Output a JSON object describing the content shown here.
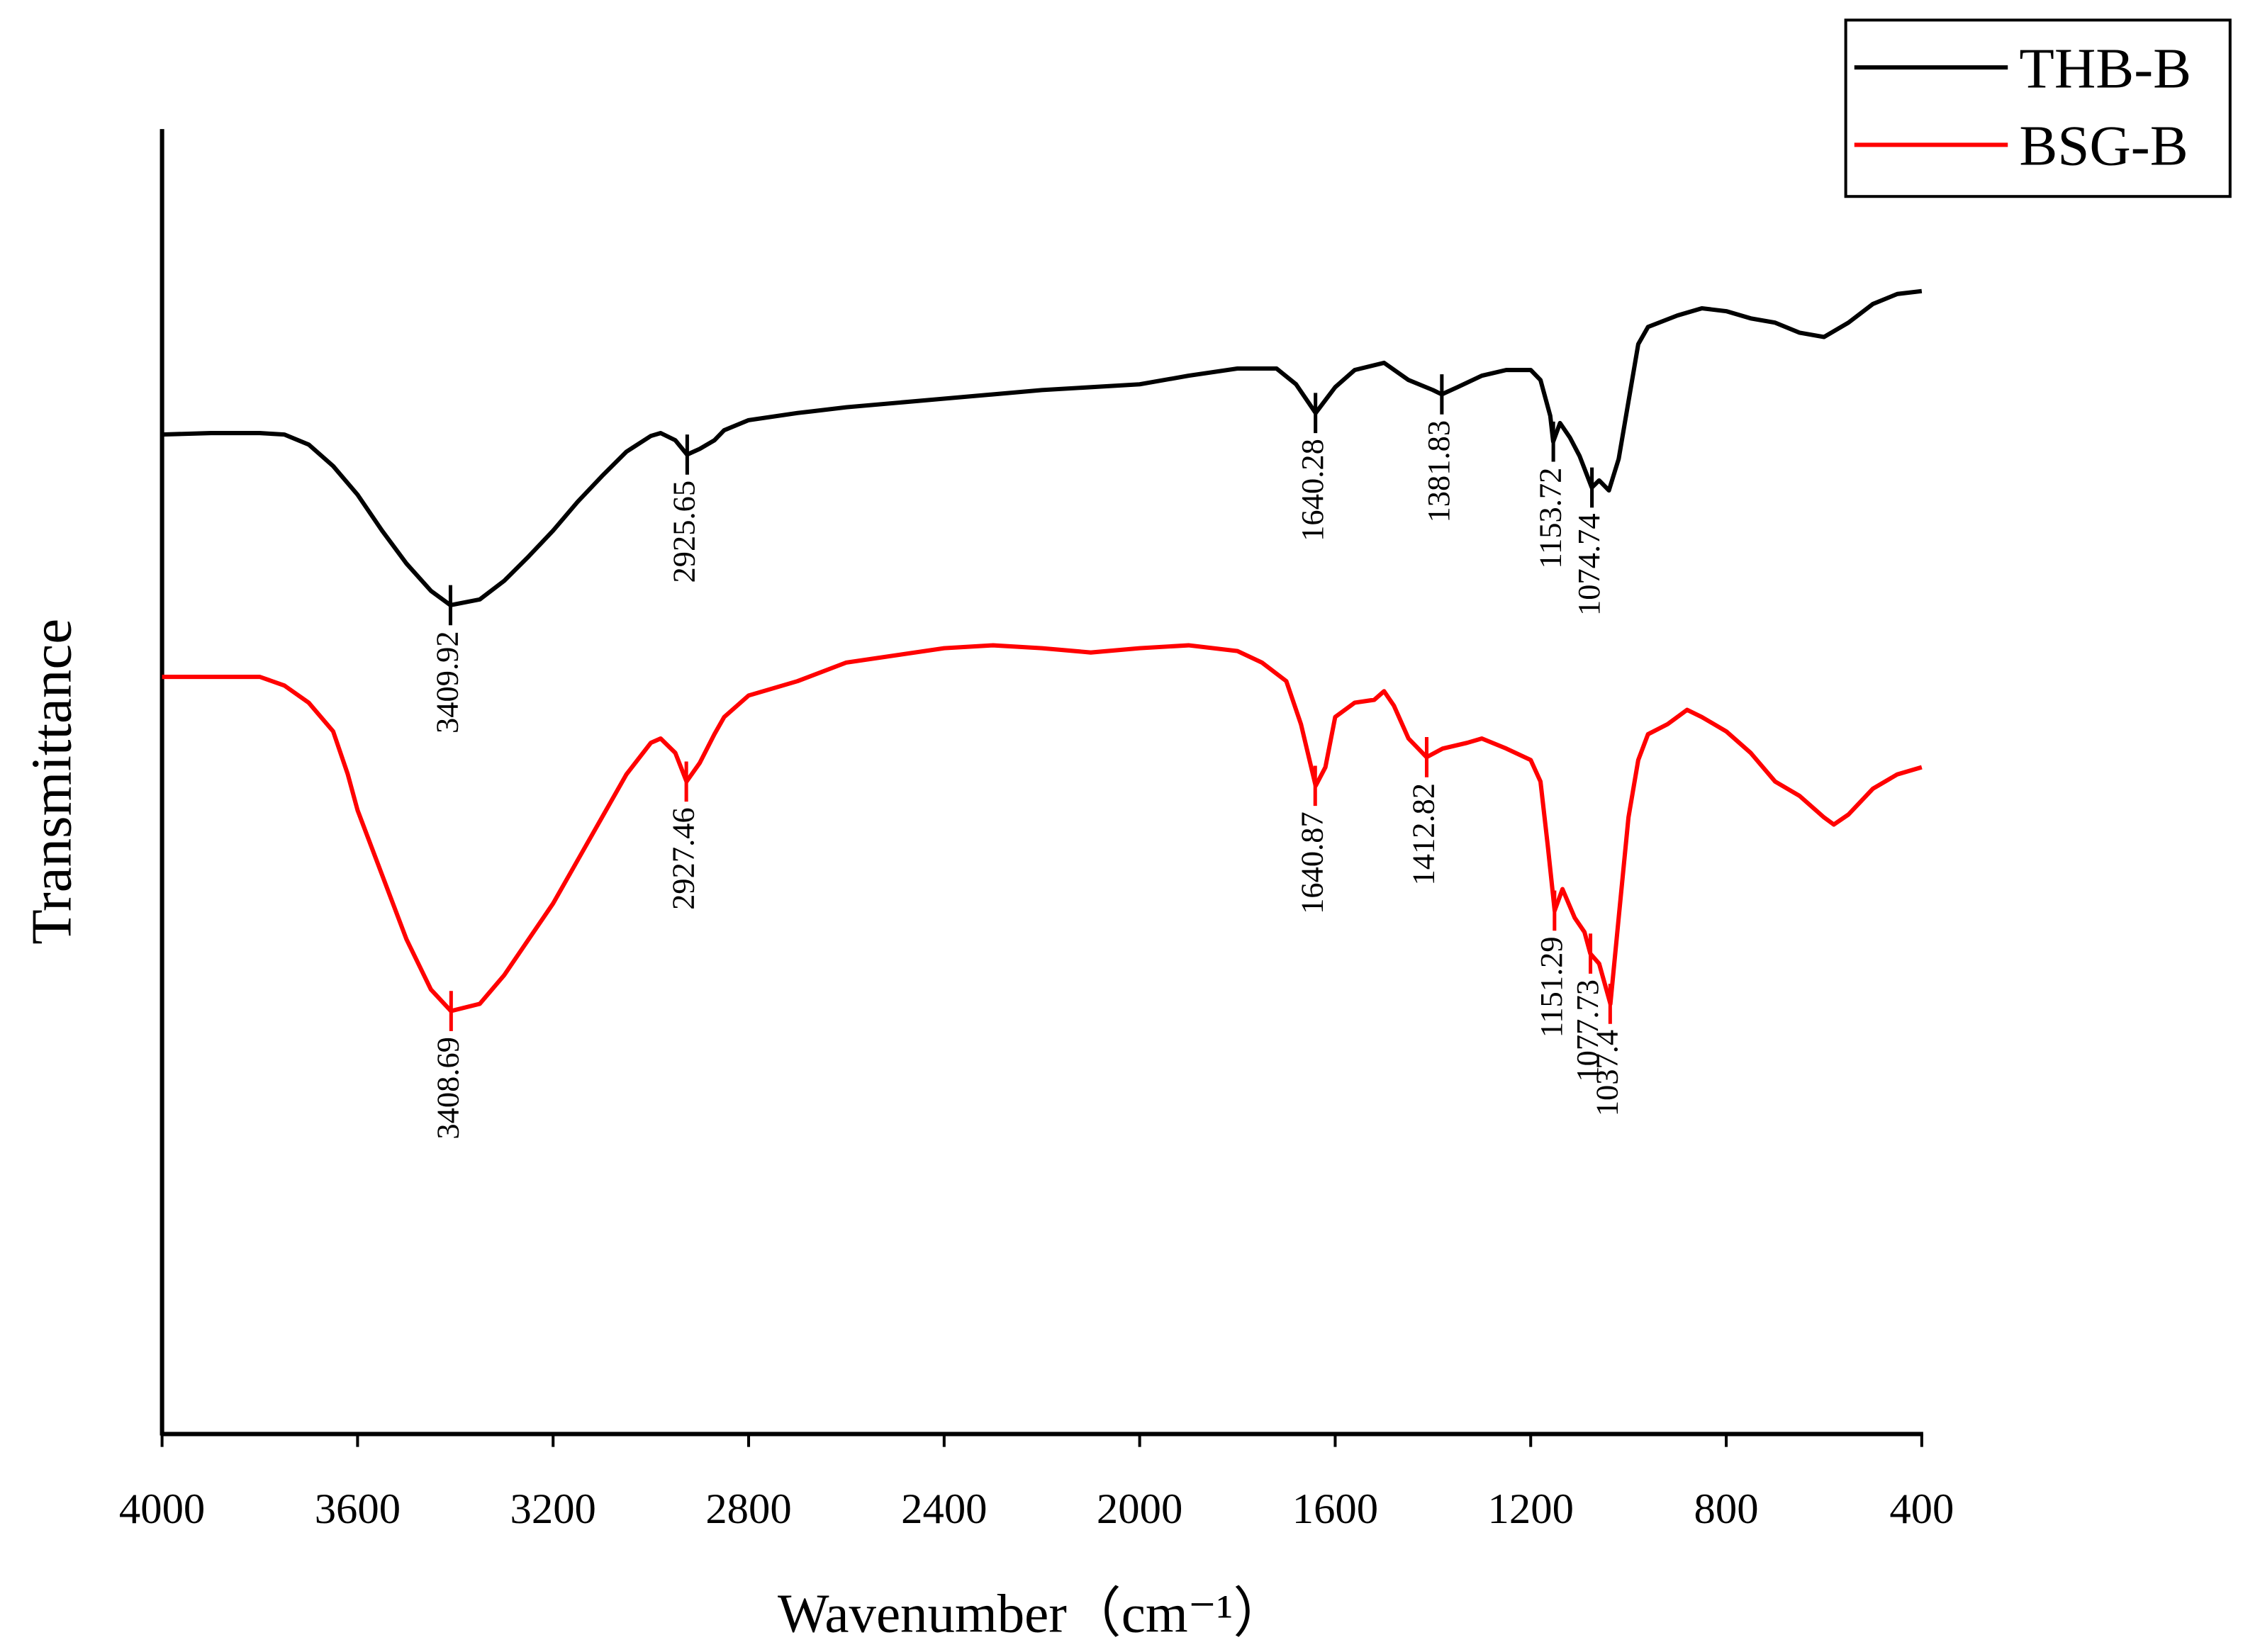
{
  "chart_data": {
    "type": "line",
    "x_label": "Wavenumber（cm⁻¹）",
    "y_label": "Transmittance",
    "xlim": [
      4000,
      400
    ],
    "xticks": [
      4000,
      3600,
      3200,
      2800,
      2400,
      2000,
      1600,
      1200,
      800,
      400
    ],
    "ylim": [
      0,
      910
    ],
    "legend": "top-right",
    "series": [
      {
        "name": "THB-B",
        "color": "#000000",
        "x": [
          4000,
          3900,
          3800,
          3750,
          3700,
          3650,
          3600,
          3550,
          3500,
          3450,
          3410,
          3350,
          3300,
          3250,
          3200,
          3150,
          3100,
          3050,
          3000,
          2980,
          2950,
          2926,
          2900,
          2870,
          2850,
          2800,
          2700,
          2600,
          2400,
          2200,
          2000,
          1900,
          1800,
          1720,
          1680,
          1640,
          1600,
          1560,
          1500,
          1450,
          1400,
          1382,
          1350,
          1300,
          1250,
          1200,
          1180,
          1160,
          1154,
          1140,
          1120,
          1100,
          1075,
          1060,
          1040,
          1020,
          1000,
          980,
          960,
          900,
          850,
          800,
          750,
          700,
          650,
          600,
          550,
          500,
          450,
          400
        ],
        "values": [
          697,
          698,
          698,
          697,
          690,
          675,
          655,
          630,
          607,
          588,
          578,
          582,
          595,
          612,
          630,
          650,
          668,
          685,
          696,
          698,
          693,
          683,
          687,
          693,
          700,
          707,
          712,
          716,
          722,
          728,
          732,
          738,
          743,
          743,
          732,
          712,
          730,
          742,
          747,
          735,
          728,
          725,
          730,
          738,
          742,
          742,
          735,
          710,
          692,
          705,
          695,
          682,
          660,
          665,
          658,
          680,
          720,
          760,
          772,
          780,
          785,
          783,
          778,
          775,
          768,
          765,
          775,
          788,
          795,
          797
        ],
        "peaks": [
          3409.92,
          2925.65,
          1640.28,
          1381.83,
          1153.72,
          1074.74
        ],
        "peak_values": [
          578,
          683,
          712,
          725,
          692,
          660
        ]
      },
      {
        "name": "BSG-B",
        "color": "#ff0000",
        "x": [
          4000,
          3800,
          3750,
          3700,
          3650,
          3620,
          3600,
          3550,
          3500,
          3450,
          3409,
          3350,
          3300,
          3250,
          3200,
          3150,
          3100,
          3050,
          3000,
          2980,
          2950,
          2927,
          2900,
          2870,
          2850,
          2800,
          2700,
          2600,
          2500,
          2400,
          2300,
          2200,
          2100,
          2000,
          1900,
          1800,
          1750,
          1700,
          1670,
          1640,
          1620,
          1600,
          1560,
          1520,
          1500,
          1480,
          1450,
          1413,
          1380,
          1330,
          1300,
          1250,
          1200,
          1180,
          1165,
          1151,
          1135,
          1110,
          1090,
          1078,
          1060,
          1037,
          1020,
          1000,
          980,
          960,
          920,
          880,
          850,
          800,
          750,
          700,
          650,
          600,
          580,
          550,
          500,
          450,
          400
        ],
        "values": [
          528,
          528,
          522,
          510,
          490,
          460,
          435,
          390,
          345,
          310,
          295,
          300,
          320,
          345,
          370,
          400,
          430,
          460,
          482,
          485,
          475,
          455,
          468,
          488,
          500,
          515,
          525,
          538,
          543,
          548,
          550,
          548,
          545,
          548,
          550,
          546,
          538,
          525,
          495,
          452,
          465,
          500,
          510,
          512,
          518,
          508,
          485,
          472,
          478,
          482,
          485,
          478,
          470,
          455,
          410,
          365,
          380,
          360,
          350,
          335,
          328,
          300,
          360,
          430,
          470,
          488,
          495,
          505,
          500,
          490,
          475,
          455,
          445,
          430,
          425,
          432,
          450,
          460,
          465
        ],
        "peaks": [
          3408.69,
          2927.46,
          1640.87,
          1412.82,
          1151.29,
          1077.73,
          1037.4
        ],
        "peak_values": [
          295,
          455,
          452,
          472,
          365,
          335,
          300
        ]
      }
    ]
  }
}
